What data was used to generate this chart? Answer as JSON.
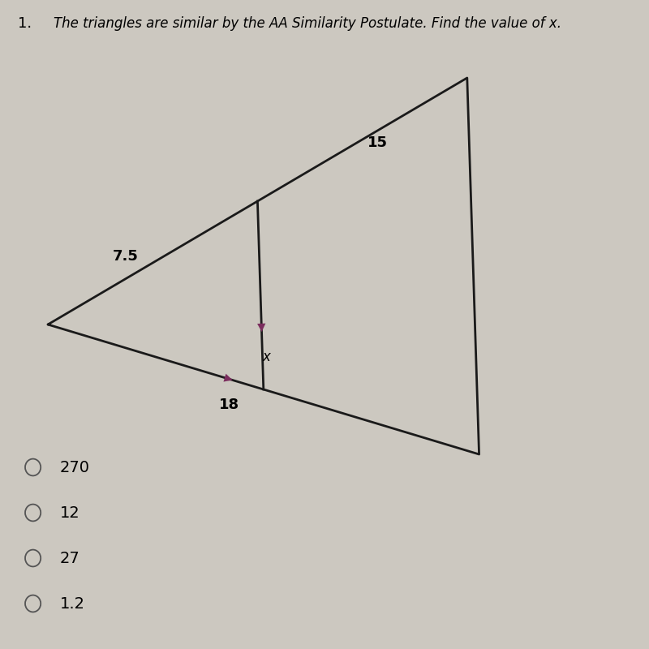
{
  "title_number": "1.",
  "title_text": "The triangles are similar by the AA Similarity Postulate. Find the value of x.",
  "bg_color": "#ccc8c0",
  "triangle_color": "#1a1a1a",
  "arrow_color": "#7b2d5e",
  "label_15": "15",
  "label_7_5": "7.5",
  "label_x": "x",
  "label_18": "18",
  "choices": [
    "270",
    "12",
    "27",
    "1.2"
  ],
  "A": [
    0.08,
    0.5
  ],
  "C": [
    0.78,
    0.88
  ],
  "B": [
    0.8,
    0.3
  ],
  "ratio": 0.5
}
